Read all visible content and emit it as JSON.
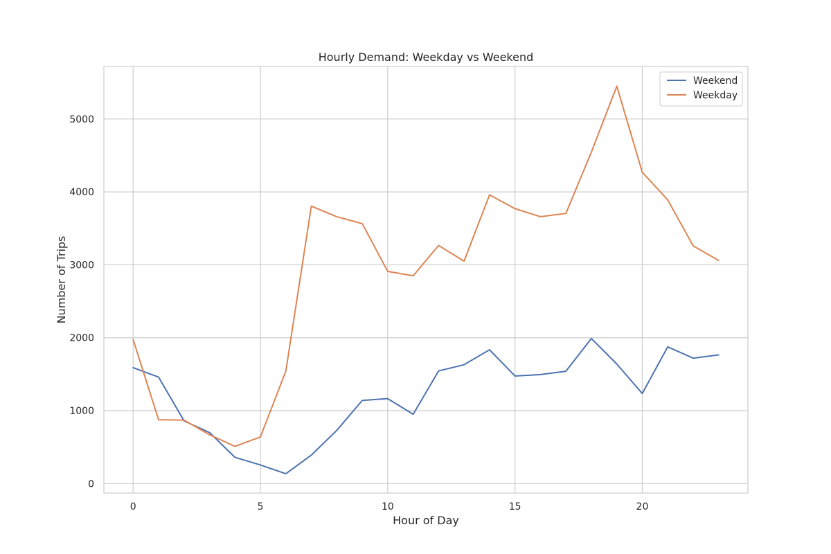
{
  "chart_data": {
    "type": "line",
    "title": "Hourly Demand: Weekday vs Weekend",
    "xlabel": "Hour of Day",
    "ylabel": "Number of Trips",
    "xlim": [
      -1.15,
      24.15
    ],
    "ylim": [
      -130,
      5720
    ],
    "xticks": [
      0,
      5,
      10,
      15,
      20
    ],
    "yticks": [
      0,
      1000,
      2000,
      3000,
      4000,
      5000
    ],
    "grid": true,
    "legend_position": "top-right",
    "x": [
      0,
      1,
      2,
      3,
      4,
      5,
      6,
      7,
      8,
      9,
      10,
      11,
      12,
      13,
      14,
      15,
      16,
      17,
      18,
      19,
      20,
      21,
      22,
      23
    ],
    "series": [
      {
        "name": "Weekend",
        "color": "#4c72b0",
        "values": [
          1590,
          1460,
          860,
          700,
          360,
          255,
          135,
          390,
          730,
          1140,
          1165,
          950,
          1545,
          1630,
          1835,
          1475,
          1495,
          1540,
          1990,
          1640,
          1235,
          1875,
          1720,
          1765
        ]
      },
      {
        "name": "Weekday",
        "color": "#dd8452",
        "values": [
          1975,
          875,
          870,
          670,
          510,
          640,
          1545,
          3805,
          3660,
          3565,
          2910,
          2850,
          3265,
          3050,
          3960,
          3770,
          3660,
          3705,
          4545,
          5450,
          4270,
          3890,
          3260,
          3060
        ]
      }
    ]
  }
}
